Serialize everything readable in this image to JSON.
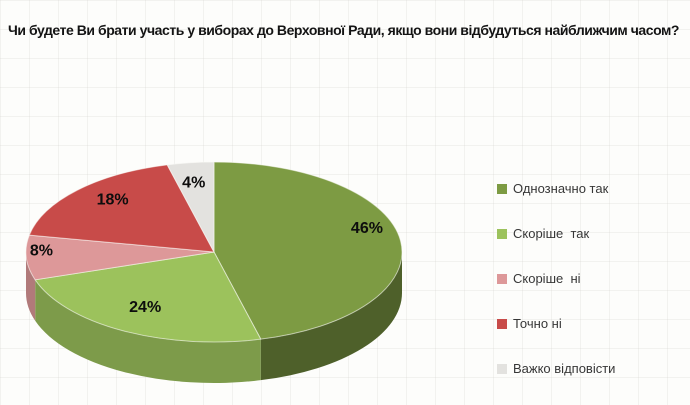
{
  "title": "Чи будете Ви брати участь у виборах до Верховної Ради, якщо вони відбудуться найближчим часом?",
  "chart_data": {
    "type": "pie",
    "effect": "3d",
    "title": "Чи будете Ви брати участь у виборах до Верховної Ради, якщо вони відбудуться найближчим часом?",
    "labels": [
      "Однозначно так",
      "Скоріше  так",
      "Скоріше  ні",
      "Точно ні",
      "Важко відповісти"
    ],
    "values": [
      46,
      24,
      8,
      18,
      4
    ],
    "value_labels": [
      "46%",
      "24%",
      "8%",
      "18%",
      "4%"
    ],
    "colors": [
      "#7d9b43",
      "#9cc25c",
      "#dd9899",
      "#c84b49",
      "#e3e2df"
    ],
    "start_angle_deg": 0,
    "direction": "clockwise",
    "legend_position": "right",
    "grid_background": "#fdfdfb",
    "label_color": "#0d0d0d"
  }
}
